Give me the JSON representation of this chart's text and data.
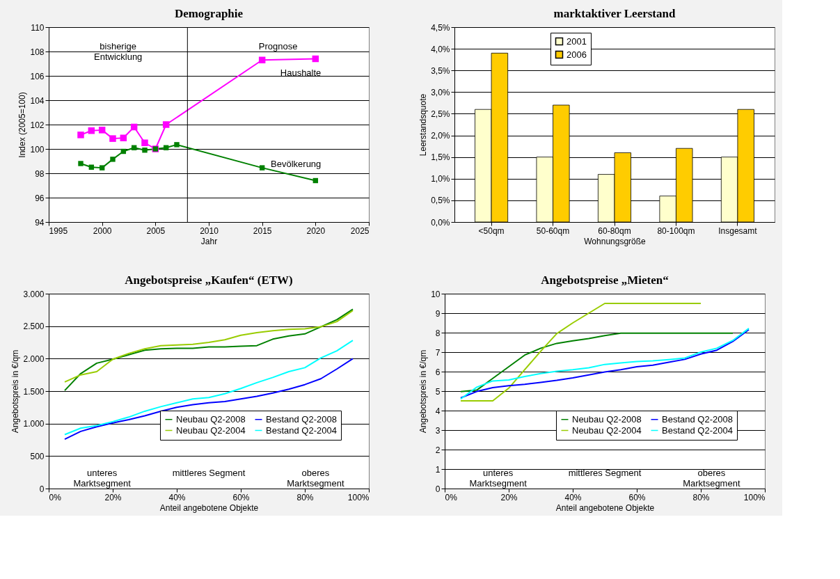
{
  "chart_data": [
    {
      "type": "line",
      "title": "Demographie",
      "xlabel": "Jahr",
      "ylabel": "Index (2005=100)",
      "xlim": [
        1995,
        2025
      ],
      "xticks": [
        1995,
        2000,
        2005,
        2010,
        2015,
        2020,
        2025
      ],
      "ylim": [
        94,
        110
      ],
      "yticks": [
        94,
        96,
        98,
        100,
        102,
        104,
        106,
        108,
        110
      ],
      "grid": "y",
      "legend": false,
      "marker": "square",
      "series": [
        {
          "name": "Haushalte",
          "color": "#ff00ff",
          "x": [
            1998,
            1999,
            2000,
            2001,
            2002,
            2003,
            2004,
            2005,
            2006,
            2015,
            2020
          ],
          "values": [
            101.15,
            101.5,
            101.55,
            100.85,
            100.9,
            101.8,
            100.5,
            100.0,
            102.0,
            107.3,
            107.4
          ]
        },
        {
          "name": "Bevölkerung",
          "color": "#008000",
          "x": [
            1998,
            1999,
            2000,
            2001,
            2002,
            2003,
            2004,
            2005,
            2006,
            2007,
            2015,
            2020
          ],
          "values": [
            98.8,
            98.5,
            98.45,
            99.15,
            99.8,
            100.1,
            99.9,
            100.0,
            100.1,
            100.35,
            98.45,
            97.4
          ]
        }
      ],
      "ref_lines": [
        {
          "axis": "x",
          "value": 2008
        }
      ],
      "annotations": [
        "bisherige\nEntwicklung",
        "Prognose"
      ]
    },
    {
      "type": "bar",
      "title": "marktaktiver Leerstand",
      "xlabel": "Wohnungsgröße",
      "ylabel": "Leerstandsquote",
      "categories": [
        "<50qm",
        "50-60qm",
        "60-80qm",
        "80-100qm",
        "Insgesamt"
      ],
      "ylim": [
        0,
        4.5
      ],
      "yticks": [
        {
          "value": 0,
          "label": "0,0%"
        },
        {
          "value": 0.5,
          "label": "0,5%"
        },
        {
          "value": 1,
          "label": "1,0%"
        },
        {
          "value": 1.5,
          "label": "1,5%"
        },
        {
          "value": 2,
          "label": "2,0%"
        },
        {
          "value": 2.5,
          "label": "2,5%"
        },
        {
          "value": 3,
          "label": "3,0%"
        },
        {
          "value": 3.5,
          "label": "3,5%"
        },
        {
          "value": 4,
          "label": "4,0%"
        },
        {
          "value": 4.5,
          "label": "4,5%"
        }
      ],
      "grid": "y",
      "legend": "top",
      "series": [
        {
          "name": "2001",
          "color": "#ffffcc",
          "values": [
            2.6,
            1.5,
            1.1,
            0.6,
            1.5
          ]
        },
        {
          "name": "2006",
          "color": "#ffcc00",
          "values": [
            3.9,
            2.7,
            1.6,
            1.7,
            2.6
          ]
        }
      ]
    },
    {
      "type": "line",
      "title": "Angebotspreise „Kaufen“ (ETW)",
      "xlabel": "Anteil angebotene Objekte",
      "ylabel": "Angebotspreis in €/qm",
      "xlim": [
        0,
        100
      ],
      "xticks": [
        {
          "value": 0,
          "label": "0%"
        },
        {
          "value": 20,
          "label": "20%"
        },
        {
          "value": 40,
          "label": "40%"
        },
        {
          "value": 60,
          "label": "60%"
        },
        {
          "value": 80,
          "label": "80%"
        },
        {
          "value": 100,
          "label": "100%"
        }
      ],
      "ylim": [
        0,
        3000
      ],
      "yticks": [
        0,
        500,
        {
          "value": 1000,
          "label": "1.000"
        },
        {
          "value": 1500,
          "label": "1.500"
        },
        {
          "value": 2000,
          "label": "2.000"
        },
        {
          "value": 2500,
          "label": "2.500"
        },
        {
          "value": 3000,
          "label": "3.000"
        }
      ],
      "grid": "y",
      "legend": "bottom right",
      "x": [
        5,
        10,
        15,
        20,
        25,
        30,
        35,
        40,
        45,
        50,
        55,
        60,
        65,
        70,
        75,
        80,
        85,
        90,
        95
      ],
      "series": [
        {
          "name": "Neubau Q2-2008",
          "color": "#008000",
          "values": [
            1510,
            1770,
            1930,
            1990,
            2060,
            2130,
            2150,
            2160,
            2160,
            2180,
            2180,
            2190,
            2200,
            2300,
            2350,
            2380,
            2490,
            2600,
            2760
          ]
        },
        {
          "name": "Neubau Q2-2004",
          "color": "#99cc00",
          "values": [
            1640,
            1750,
            1800,
            1990,
            2080,
            2150,
            2200,
            2210,
            2220,
            2250,
            2290,
            2360,
            2400,
            2430,
            2450,
            2460,
            2490,
            2570,
            2740
          ]
        },
        {
          "name": "Bestand Q2-2008",
          "color": "#0000ff",
          "values": [
            760,
            880,
            950,
            1010,
            1060,
            1120,
            1190,
            1250,
            1290,
            1320,
            1340,
            1380,
            1420,
            1470,
            1530,
            1600,
            1690,
            1840,
            2000
          ]
        },
        {
          "name": "Bestand Q2-2004",
          "color": "#00ffff",
          "values": [
            830,
            930,
            970,
            1030,
            1100,
            1190,
            1260,
            1320,
            1380,
            1400,
            1460,
            1540,
            1630,
            1710,
            1800,
            1860,
            2010,
            2120,
            2280
          ]
        }
      ],
      "annotations": [
        "unteres\nMarktsegment",
        "mittleres Segment",
        "oberes\nMarktsegment"
      ]
    },
    {
      "type": "line",
      "title": "Angebotspreise „Mieten“",
      "xlabel": "Anteil angebotene Objekte",
      "ylabel": "Angebotspreis in €/qm",
      "xlim": [
        0,
        100
      ],
      "xticks": [
        {
          "value": 0,
          "label": "0%"
        },
        {
          "value": 20,
          "label": "20%"
        },
        {
          "value": 40,
          "label": "40%"
        },
        {
          "value": 60,
          "label": "60%"
        },
        {
          "value": 80,
          "label": "80%"
        },
        {
          "value": 100,
          "label": "100%"
        }
      ],
      "ylim": [
        0,
        10
      ],
      "yticks": [
        0,
        1,
        2,
        3,
        4,
        5,
        6,
        7,
        8,
        9,
        10
      ],
      "grid": "y",
      "legend": "bottom right",
      "x": [
        5,
        10,
        15,
        20,
        25,
        30,
        35,
        40,
        45,
        50,
        55,
        60,
        65,
        70,
        75,
        80,
        85,
        90,
        95
      ],
      "series": [
        {
          "name": "Neubau Q2-2008",
          "color": "#008000",
          "values": [
            4.97,
            5.05,
            5.65,
            6.25,
            6.85,
            7.2,
            7.45,
            7.58,
            7.7,
            7.85,
            7.97,
            7.97,
            7.97,
            7.97,
            7.97,
            7.97,
            7.97,
            7.97,
            null
          ]
        },
        {
          "name": "Neubau Q2-2004",
          "color": "#99cc00",
          "values": [
            4.5,
            4.5,
            4.5,
            5.15,
            6.1,
            7.05,
            7.95,
            8.5,
            9.0,
            9.5,
            9.5,
            9.5,
            9.5,
            9.5,
            9.5,
            9.5,
            null,
            null,
            null
          ]
        },
        {
          "name": "Bestand Q2-2008",
          "color": "#0000ff",
          "values": [
            4.65,
            4.98,
            5.18,
            5.28,
            5.35,
            5.45,
            5.55,
            5.68,
            5.83,
            5.98,
            6.1,
            6.25,
            6.33,
            6.48,
            6.63,
            6.9,
            7.1,
            7.55,
            8.15
          ]
        },
        {
          "name": "Bestand Q2-2004",
          "color": "#00ffff",
          "values": [
            4.6,
            5.2,
            5.52,
            5.57,
            5.75,
            5.9,
            6.02,
            6.1,
            6.2,
            6.37,
            6.45,
            6.52,
            6.55,
            6.62,
            6.7,
            7.0,
            7.2,
            7.6,
            8.22
          ]
        }
      ],
      "annotations": [
        "unteres\nMarktsegment",
        "mittleres Segment",
        "oberes\nMarktsegment"
      ]
    }
  ]
}
